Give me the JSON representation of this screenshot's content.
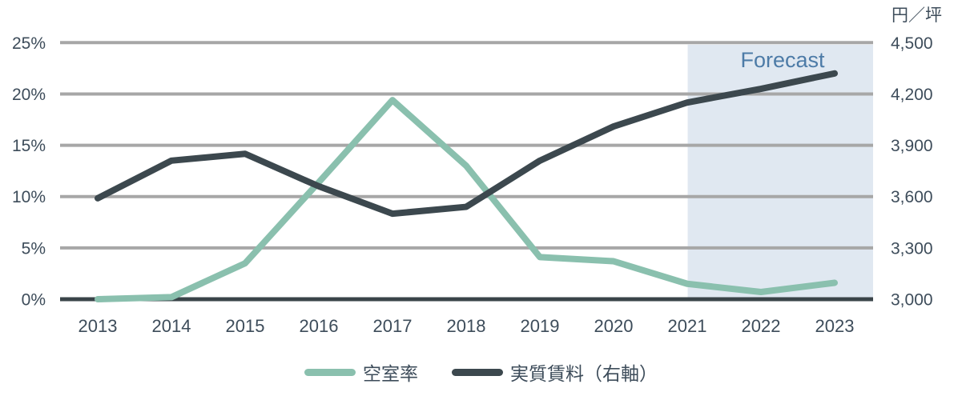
{
  "chart_data": {
    "type": "line",
    "x": [
      "2013",
      "2014",
      "2015",
      "2016",
      "2017",
      "2018",
      "2019",
      "2020",
      "2021",
      "2022",
      "2023"
    ],
    "series": [
      {
        "name": "空室率",
        "axis": "left",
        "color": "#8ac0ae",
        "values": [
          0.0,
          0.2,
          3.5,
          11.4,
          19.4,
          13.0,
          4.1,
          3.7,
          1.5,
          0.7,
          1.6
        ]
      },
      {
        "name": "実質賃料（右軸）",
        "axis": "right",
        "color": "#3c484e",
        "values": [
          3590,
          3810,
          3850,
          3660,
          3500,
          3540,
          3810,
          4010,
          4150,
          4230,
          4320
        ]
      }
    ],
    "left_axis": {
      "min": 0,
      "max": 25,
      "ticks": [
        "0%",
        "5%",
        "10%",
        "15%",
        "20%",
        "25%"
      ]
    },
    "right_axis": {
      "title": "円／坪",
      "min": 3000,
      "max": 4500,
      "ticks": [
        "3,000",
        "3,300",
        "3,600",
        "3,900",
        "4,200",
        "4,500"
      ]
    },
    "forecast": {
      "label": "Forecast",
      "start_year": "2021"
    },
    "grid": true,
    "legend_position": "bottom"
  },
  "legend": {
    "items": [
      {
        "label": "空室率",
        "color": "#8ac0ae"
      },
      {
        "label": "実質賃料（右軸）",
        "color": "#3c484e"
      }
    ]
  },
  "colors": {
    "gridline": "#a7a7a7",
    "axis_line": "#3a4449",
    "tick_text": "#3d4c5a",
    "forecast_fill": "#e0e8f1",
    "forecast_text": "#4d7ba7"
  }
}
